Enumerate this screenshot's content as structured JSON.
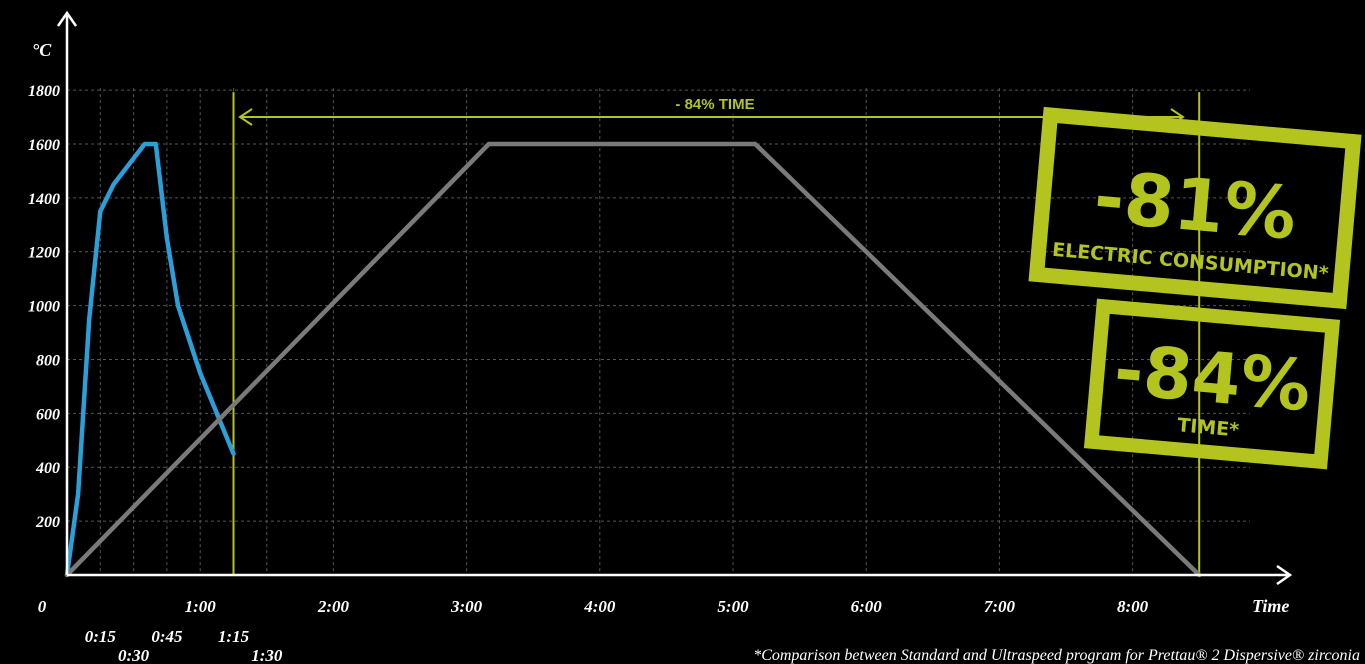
{
  "chart_data": {
    "type": "line",
    "ylabel": "°C",
    "xlabel": "Time",
    "ylim": [
      0,
      1800
    ],
    "xlim_minutes": [
      0,
      540
    ],
    "grid": true,
    "y_ticks": [
      "200",
      "400",
      "600",
      "800",
      "1000",
      "1200",
      "1400",
      "1600",
      "1800"
    ],
    "x_ticks": [
      {
        "label": "0",
        "minutes": 0,
        "row": 0
      },
      {
        "label": "1:00",
        "minutes": 60,
        "row": 0
      },
      {
        "label": "2:00",
        "minutes": 120,
        "row": 0
      },
      {
        "label": "3:00",
        "minutes": 180,
        "row": 0
      },
      {
        "label": "4:00",
        "minutes": 240,
        "row": 0
      },
      {
        "label": "5:00",
        "minutes": 300,
        "row": 0
      },
      {
        "label": "6:00",
        "minutes": 360,
        "row": 0
      },
      {
        "label": "7:00",
        "minutes": 420,
        "row": 0
      },
      {
        "label": "8:00",
        "minutes": 480,
        "row": 0
      },
      {
        "label": "0:15",
        "minutes": 15,
        "row": 1
      },
      {
        "label": "0:45",
        "minutes": 45,
        "row": 1
      },
      {
        "label": "1:15",
        "minutes": 75,
        "row": 1
      },
      {
        "label": "0:30",
        "minutes": 30,
        "row": 2
      },
      {
        "label": "1:30",
        "minutes": 90,
        "row": 2
      }
    ],
    "series": [
      {
        "color": "#2a9fd8",
        "points": [
          [
            0,
            0
          ],
          [
            5,
            300
          ],
          [
            10,
            950
          ],
          [
            15,
            1350
          ],
          [
            21,
            1450
          ],
          [
            35,
            1600
          ],
          [
            40,
            1600
          ],
          [
            45,
            1250
          ],
          [
            50,
            1000
          ],
          [
            60,
            750
          ],
          [
            75,
            450
          ]
        ]
      },
      {
        "color": "#7a7a7a",
        "points": [
          [
            0,
            0
          ],
          [
            190,
            1600
          ],
          [
            310,
            1600
          ],
          [
            510,
            0
          ]
        ]
      }
    ],
    "reference_lines": {
      "color": "#b3c41f",
      "x_minutes": [
        75,
        510
      ]
    },
    "annotations": {
      "arrow_label": "- 84% TIME",
      "footnote": "*Comparison between Standard and Ultraspeed program for Prettau® 2 Dispersive® zirconia"
    }
  },
  "stamps": [
    {
      "big": "-81%",
      "small": "ELECTRIC CONSUMPTION*"
    },
    {
      "big": "-84%",
      "small": "TIME*"
    }
  ]
}
